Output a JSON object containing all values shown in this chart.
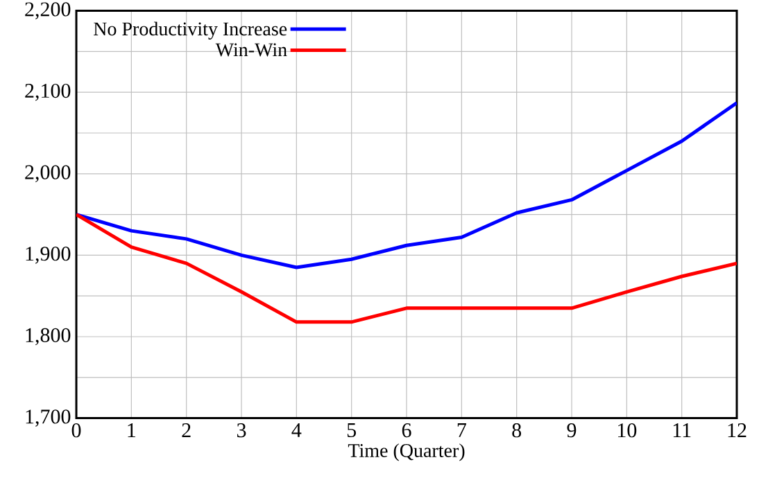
{
  "chart_data": {
    "type": "line",
    "xlabel": "Time (Quarter)",
    "x": [
      0,
      1,
      2,
      3,
      4,
      5,
      6,
      7,
      8,
      9,
      10,
      11,
      12
    ],
    "series": [
      {
        "name": "No Productivity Increase",
        "color": "#0000ff",
        "values": [
          1950,
          1930,
          1920,
          1900,
          1885,
          1895,
          1912,
          1922,
          1952,
          1968,
          2004,
          2040,
          2087
        ]
      },
      {
        "name": "Win-Win",
        "color": "#ff0000",
        "values": [
          1950,
          1910,
          1890,
          1855,
          1818,
          1818,
          1835,
          1835,
          1835,
          1835,
          1855,
          1874,
          1890
        ]
      }
    ],
    "xlim": [
      0,
      12
    ],
    "xticks": [
      0,
      1,
      2,
      3,
      4,
      5,
      6,
      7,
      8,
      9,
      10,
      11,
      12
    ],
    "ylim": [
      1700,
      2200
    ],
    "yticks": [
      {
        "value": 1700,
        "label": "1,700"
      },
      {
        "value": 1750,
        "label": null
      },
      {
        "value": 1800,
        "label": "1,800"
      },
      {
        "value": 1850,
        "label": null
      },
      {
        "value": 1900,
        "label": "1,900"
      },
      {
        "value": 1950,
        "label": null
      },
      {
        "value": 2000,
        "label": "2,000"
      },
      {
        "value": 2050,
        "label": null
      },
      {
        "value": 2100,
        "label": "2,100"
      },
      {
        "value": 2150,
        "label": null
      },
      {
        "value": 2200,
        "label": "2,200"
      }
    ],
    "grid": true,
    "legend": "top left",
    "marker": "none",
    "line_style": "solid"
  }
}
